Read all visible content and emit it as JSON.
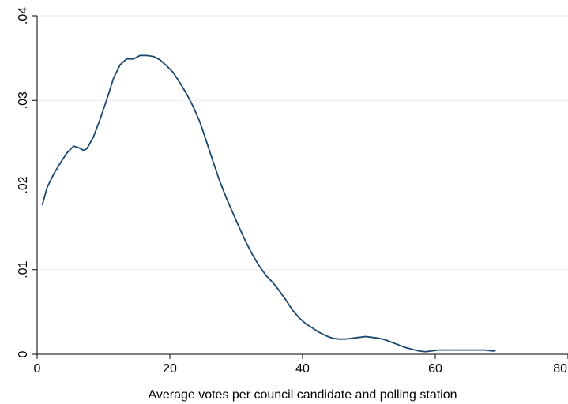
{
  "chart_data": {
    "type": "line",
    "title": "",
    "xlabel": "Average votes per council candidate and polling station",
    "ylabel": "",
    "xlim": [
      0,
      80
    ],
    "ylim": [
      0,
      0.04
    ],
    "x_ticks": [
      {
        "value": 0,
        "label": "0"
      },
      {
        "value": 20,
        "label": "20"
      },
      {
        "value": 40,
        "label": "40"
      },
      {
        "value": 60,
        "label": "60"
      },
      {
        "value": 80,
        "label": "80"
      }
    ],
    "y_ticks": [
      {
        "value": 0,
        "label": "0"
      },
      {
        "value": 0.01,
        "label": ".01"
      },
      {
        "value": 0.02,
        "label": ".02"
      },
      {
        "value": 0.03,
        "label": ".03"
      },
      {
        "value": 0.04,
        "label": ".04"
      }
    ],
    "grid": true,
    "line_color": "#1a476f",
    "series": [
      {
        "x": [
          0.8,
          1.5,
          2.5,
          3.5,
          4.5,
          5.5,
          6.3,
          7.0,
          7.5,
          8.5,
          9.5,
          10.5,
          11.5,
          12.5,
          13.5,
          14.5,
          15.5,
          16.5,
          17.5,
          18.5,
          19.5,
          20.5,
          21.5,
          22.5,
          23.5,
          24.5,
          25.5,
          26.5,
          27.5,
          28.5,
          29.5,
          30.5,
          31.5,
          32.5,
          33.5,
          34.5,
          35.5,
          36.5,
          37.5,
          38.5,
          39.5,
          40.5,
          41.5,
          42.5,
          43.5,
          44.5,
          45.5,
          46.5,
          47.5,
          48.5,
          49.5,
          50.5,
          51.5,
          52.5,
          53.5,
          54.5,
          55.5,
          56.5,
          57.5,
          58.5,
          59.5,
          60.5,
          61.5,
          62.5,
          63.5,
          64.5,
          65.5,
          66.5,
          67.5,
          68.5,
          69.0
        ],
        "y": [
          0.0177,
          0.0197,
          0.0213,
          0.0226,
          0.0238,
          0.0246,
          0.0244,
          0.0241,
          0.0243,
          0.0257,
          0.0278,
          0.0301,
          0.0326,
          0.0342,
          0.0349,
          0.0349,
          0.0353,
          0.0353,
          0.0352,
          0.0348,
          0.0341,
          0.0333,
          0.0321,
          0.0308,
          0.0293,
          0.0275,
          0.0252,
          0.0228,
          0.0205,
          0.0185,
          0.0167,
          0.0149,
          0.0132,
          0.0117,
          0.0104,
          0.0093,
          0.0085,
          0.0075,
          0.0064,
          0.0052,
          0.0043,
          0.0036,
          0.0031,
          0.0026,
          0.0022,
          0.0019,
          0.0018,
          0.0018,
          0.0019,
          0.002,
          0.0021,
          0.002,
          0.0019,
          0.0017,
          0.0014,
          0.0011,
          0.0008,
          0.0006,
          0.0004,
          0.0003,
          0.0004,
          0.0005,
          0.0005,
          0.0005,
          0.0005,
          0.0005,
          0.0005,
          0.0005,
          0.0005,
          0.0004,
          0.0004
        ]
      }
    ]
  }
}
